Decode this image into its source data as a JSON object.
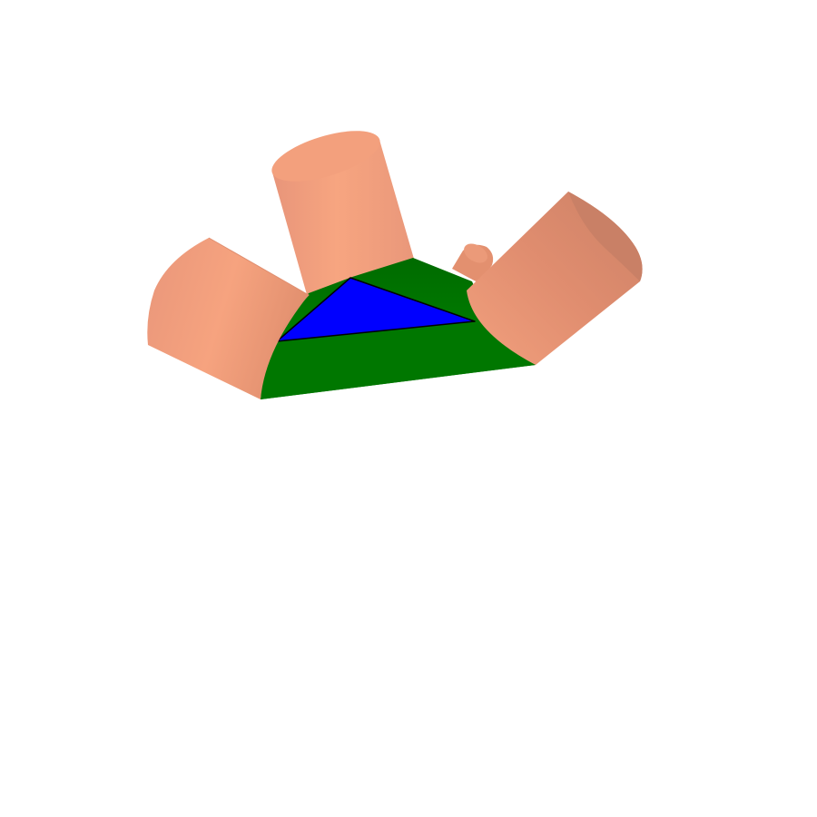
{
  "scene": {
    "background": "#ffffff",
    "colors": {
      "tube_light": "#f5a27e",
      "tube_mid": "#e7977a",
      "tube_dark": "#cf8468",
      "tube_cap": "#d2876c",
      "body_green": "#007700",
      "body_green_dark": "#006400",
      "face_blue": "#0000ff",
      "edge": "#000000"
    },
    "parts": [
      "left-tube",
      "back-tube",
      "right-tube",
      "rear-stub-tube",
      "green-base",
      "blue-triangle-face"
    ]
  }
}
